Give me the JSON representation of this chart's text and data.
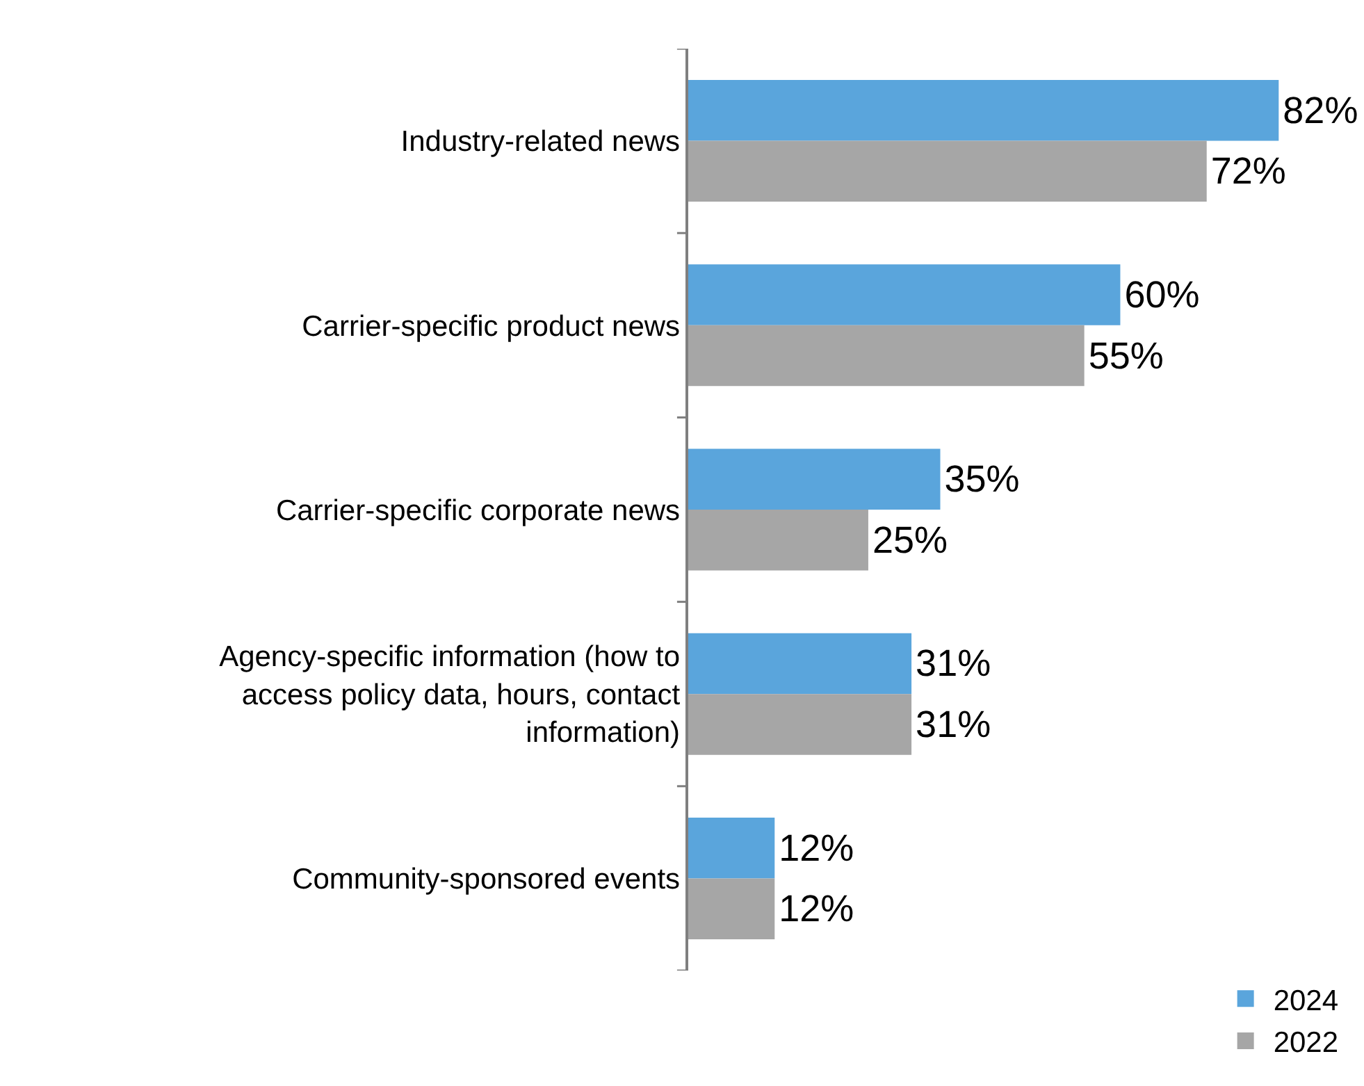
{
  "chart_data": {
    "type": "bar",
    "orientation": "horizontal",
    "categories": [
      "Industry-related news",
      "Carrier-specific product news",
      "Carrier-specific corporate news",
      "Agency-specific information (how to access policy data, hours, contact information)",
      "Community-sponsored events"
    ],
    "series": [
      {
        "name": "2024",
        "color": "#5aa5dc",
        "values": [
          82,
          60,
          35,
          31,
          12
        ],
        "value_labels": [
          "82%",
          "60%",
          "35%",
          "31%",
          "12%"
        ]
      },
      {
        "name": "2022",
        "color": "#a6a6a6",
        "values": [
          72,
          55,
          25,
          31,
          12
        ],
        "value_labels": [
          "72%",
          "55%",
          "25%",
          "31%",
          "12%"
        ]
      }
    ],
    "legend": "bottom right"
  }
}
